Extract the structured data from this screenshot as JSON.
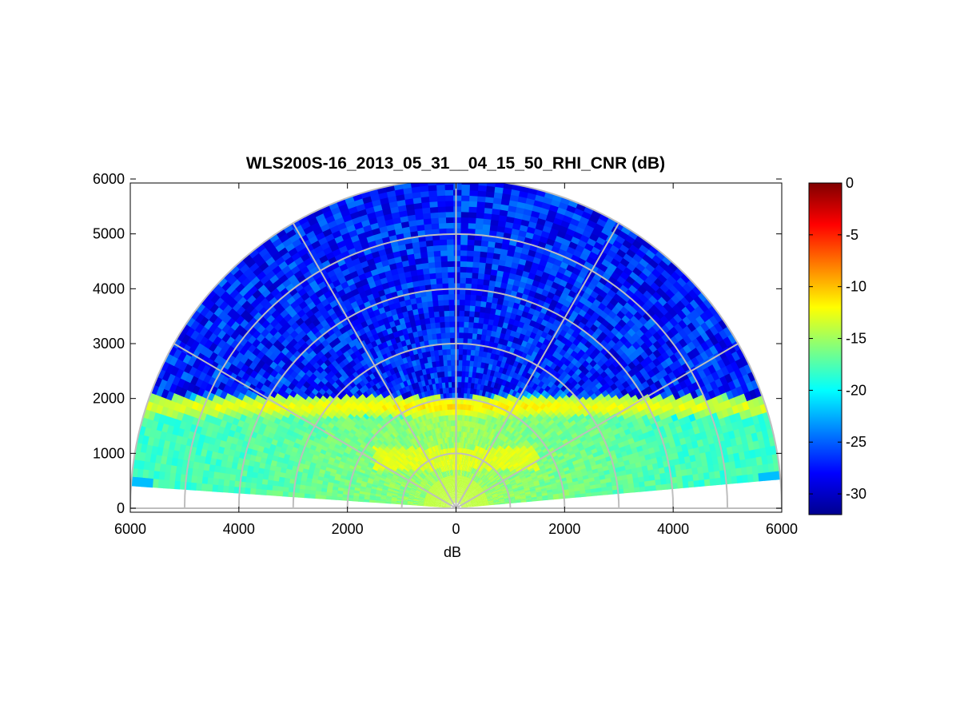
{
  "chart_data": {
    "type": "heatmap",
    "projection": "polar-rhi",
    "title": "WLS200S-16_2013_05_31__04_15_50_RHI_CNR (dB)",
    "xlabel": "dB",
    "ylabel": "",
    "xlim": [
      -6000,
      6000
    ],
    "ylim": [
      0,
      6000
    ],
    "x_ticks": [
      {
        "value": -6000,
        "label": "6000"
      },
      {
        "value": -4000,
        "label": "4000"
      },
      {
        "value": -2000,
        "label": "2000"
      },
      {
        "value": 0,
        "label": "0"
      },
      {
        "value": 2000,
        "label": "2000"
      },
      {
        "value": 4000,
        "label": "4000"
      },
      {
        "value": 6000,
        "label": "6000"
      }
    ],
    "y_ticks": [
      {
        "value": 0,
        "label": "0"
      },
      {
        "value": 1000,
        "label": "1000"
      },
      {
        "value": 2000,
        "label": "2000"
      },
      {
        "value": 3000,
        "label": "3000"
      },
      {
        "value": 4000,
        "label": "4000"
      },
      {
        "value": 5000,
        "label": "5000"
      },
      {
        "value": 6000,
        "label": "6000"
      }
    ],
    "range_rings": [
      1000,
      2000,
      3000,
      4000,
      5000,
      6000
    ],
    "spoke_angles_deg": [
      0,
      30,
      60,
      90,
      120,
      150,
      180
    ],
    "scan_elevation_deg": [
      5,
      175
    ],
    "max_range": 6000,
    "colormap": "jet",
    "colorbar": {
      "min": -32,
      "max": 0,
      "ticks": [
        {
          "value": 0,
          "label": "0"
        },
        {
          "value": -5,
          "label": "-5"
        },
        {
          "value": -10,
          "label": "-10"
        },
        {
          "value": -15,
          "label": "-15"
        },
        {
          "value": -20,
          "label": "-20"
        },
        {
          "value": -25,
          "label": "-25"
        },
        {
          "value": -30,
          "label": "-30"
        }
      ]
    },
    "field_description": {
      "background_dB": -27,
      "boundary_layer_top_height": 2000,
      "boundary_layer_mean_dB": -15,
      "peak_layer_height": 1850,
      "peak_layer_dB": -11,
      "aerosol_layer_near_ground_dB": -14
    },
    "grid": true,
    "grid_color": "#bebebe"
  }
}
